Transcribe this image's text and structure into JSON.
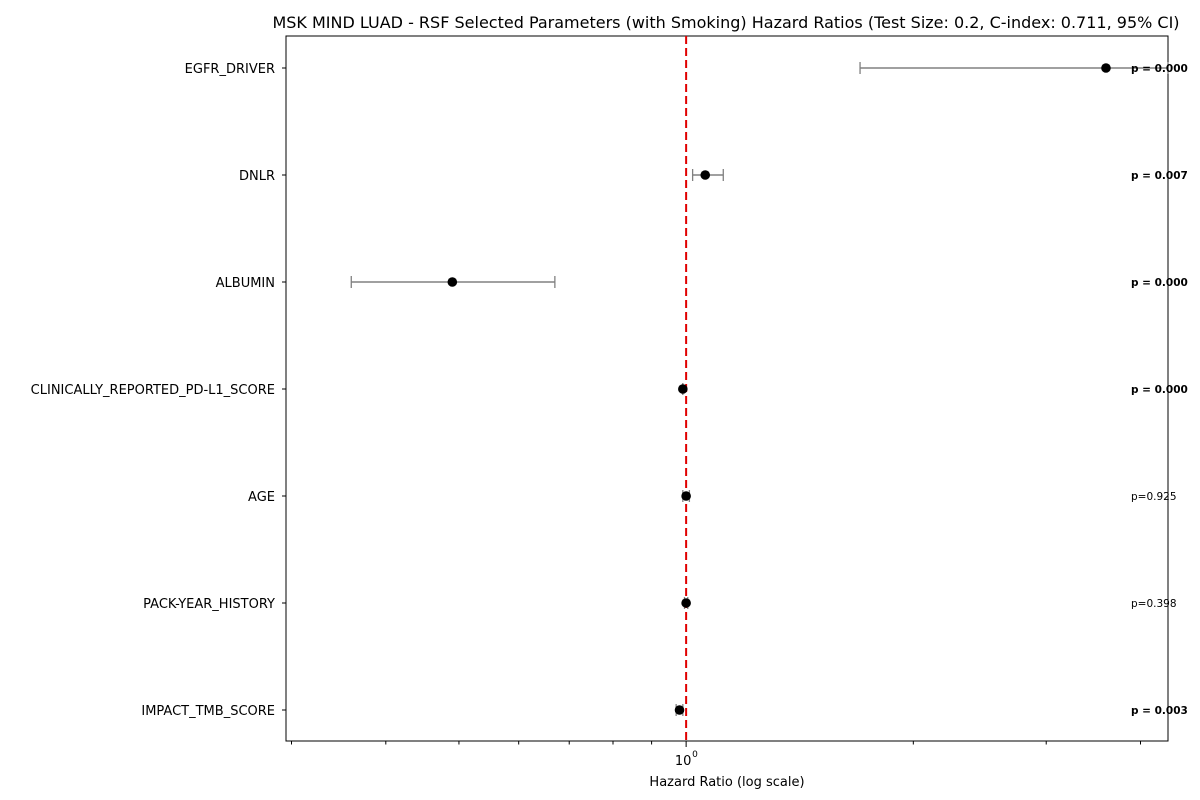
{
  "chart_data": {
    "type": "forest",
    "title": "MSK MIND LUAD - RSF Selected Parameters (with Smoking) Hazard Ratios (Test Size: 0.2, C-index: 0.711, 95% CI)",
    "xlabel": "Hazard Ratio (log scale)",
    "xscale": "log",
    "xlim": [
      0.295,
      4.35
    ],
    "reference_line": 1.0,
    "x_tick_label": "10",
    "x_tick_exponent": "0",
    "grid": false,
    "parameters": [
      {
        "name": "EGFR_DRIVER",
        "hr": 3.6,
        "ci_low": 1.7,
        "ci_high": 4.35,
        "p": "p = 0.000",
        "significant": true
      },
      {
        "name": "DNLR",
        "hr": 1.06,
        "ci_low": 1.02,
        "ci_high": 1.12,
        "p": "p = 0.007",
        "significant": true
      },
      {
        "name": "ALBUMIN",
        "hr": 0.49,
        "ci_low": 0.36,
        "ci_high": 0.67,
        "p": "p = 0.000",
        "significant": true
      },
      {
        "name": "CLINICALLY_REPORTED_PD-L1_SCORE",
        "hr": 0.99,
        "ci_low": 0.99,
        "ci_high": 0.99,
        "p": "p = 0.000",
        "significant": true
      },
      {
        "name": "AGE",
        "hr": 1.0,
        "ci_low": 0.99,
        "ci_high": 1.01,
        "p": "p=0.925",
        "significant": false
      },
      {
        "name": "PACK-YEAR_HISTORY",
        "hr": 1.0,
        "ci_low": 0.995,
        "ci_high": 1.005,
        "p": "p=0.398",
        "significant": false
      },
      {
        "name": "IMPACT_TMB_SCORE",
        "hr": 0.98,
        "ci_low": 0.97,
        "ci_high": 0.99,
        "p": "p = 0.003",
        "significant": true
      }
    ]
  }
}
